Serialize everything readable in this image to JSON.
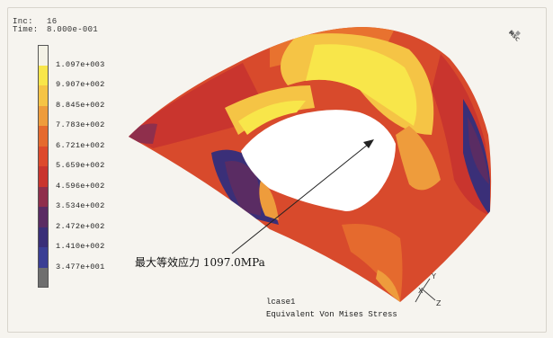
{
  "header": {
    "inc_label": "Inc:",
    "inc_value": "16",
    "time_label": "Time:",
    "time_value": "8.000e-001"
  },
  "logo": "MSC",
  "legend": {
    "labels": [
      "1.097e+003",
      "9.907e+002",
      "8.845e+002",
      "7.783e+002",
      "6.721e+002",
      "5.659e+002",
      "4.596e+002",
      "3.534e+002",
      "2.472e+002",
      "1.410e+002",
      "3.477e+001"
    ],
    "colors": [
      "#f4f2e6",
      "#f8e64a",
      "#f5c445",
      "#ee9c3c",
      "#e56a2e",
      "#dd4a2c",
      "#c9352e",
      "#8f2f4c",
      "#5a2c63",
      "#3a2f78",
      "#3b3f94",
      "#6f6f6f"
    ]
  },
  "annotation": "最大等效应力 1097.0MPa",
  "footer": {
    "case": "lcase1",
    "result": "Equivalent Von Mises Stress"
  },
  "triad": {
    "x": "X",
    "y": "Y",
    "z": "Z"
  }
}
